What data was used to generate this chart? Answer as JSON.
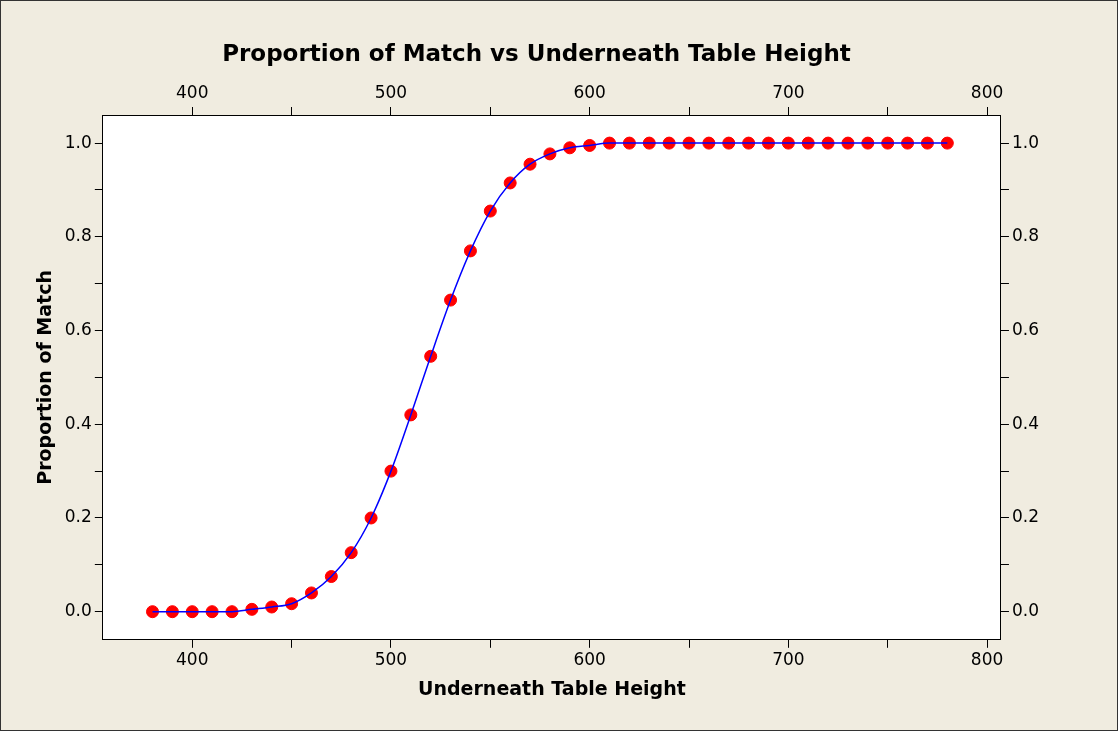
{
  "chart_data": {
    "type": "line",
    "title": "Proportion of Match vs Underneath Table Height",
    "xlabel": "Underneath Table Height",
    "ylabel": "Proportion of Match",
    "x": [
      380,
      390,
      400,
      410,
      420,
      430,
      440,
      450,
      460,
      470,
      480,
      490,
      500,
      510,
      520,
      530,
      540,
      550,
      560,
      570,
      580,
      590,
      600,
      610,
      620,
      630,
      640,
      650,
      660,
      670,
      680,
      690,
      700,
      710,
      720,
      730,
      740,
      750,
      760,
      770,
      780
    ],
    "series": [
      {
        "type": "line",
        "color": "#0000ff",
        "marker": "none",
        "values": [
          0.0,
          0.0,
          0.0,
          0.0,
          0.0,
          0.005,
          0.01,
          0.017,
          0.04,
          0.075,
          0.126,
          0.2,
          0.3,
          0.42,
          0.545,
          0.665,
          0.77,
          0.855,
          0.915,
          0.955,
          0.977,
          0.99,
          0.995,
          1.0,
          1.0,
          1.0,
          1.0,
          1.0,
          1.0,
          1.0,
          1.0,
          1.0,
          1.0,
          1.0,
          1.0,
          1.0,
          1.0,
          1.0,
          1.0,
          1.0,
          1.0
        ]
      },
      {
        "type": "scatter",
        "color": "#ff0000",
        "marker": "circle",
        "values": [
          0.0,
          0.0,
          0.0,
          0.0,
          0.0,
          0.005,
          0.01,
          0.017,
          0.04,
          0.075,
          0.126,
          0.2,
          0.3,
          0.42,
          0.545,
          0.665,
          0.77,
          0.855,
          0.915,
          0.955,
          0.977,
          0.99,
          0.995,
          1.0,
          1.0,
          1.0,
          1.0,
          1.0,
          1.0,
          1.0,
          1.0,
          1.0,
          1.0,
          1.0,
          1.0,
          1.0,
          1.0,
          1.0,
          1.0,
          1.0,
          1.0
        ]
      }
    ],
    "xlim": [
      355,
      807
    ],
    "xticks": [
      400,
      {
        "value": 450,
        "label": null
      },
      500,
      {
        "value": 550,
        "label": null
      },
      600,
      {
        "value": 650,
        "label": null
      },
      700,
      {
        "value": 750,
        "label": null
      },
      800
    ],
    "x2lim": [
      355,
      807
    ],
    "x2ticks": [
      400,
      {
        "value": 450,
        "label": null
      },
      500,
      {
        "value": 550,
        "label": null
      },
      600,
      {
        "value": 650,
        "label": null
      },
      700,
      {
        "value": 750,
        "label": null
      },
      800
    ],
    "ylim": [
      -0.06,
      1.06
    ],
    "yticks": [
      {
        "value": 0,
        "label": "0.0"
      },
      {
        "value": 0.1,
        "label": null
      },
      {
        "value": 0.2,
        "label": "0.2"
      },
      {
        "value": 0.3,
        "label": null
      },
      {
        "value": 0.4,
        "label": "0.4"
      },
      {
        "value": 0.5,
        "label": null
      },
      {
        "value": 0.6,
        "label": "0.6"
      },
      {
        "value": 0.7,
        "label": null
      },
      {
        "value": 0.8,
        "label": "0.8"
      },
      {
        "value": 0.9,
        "label": null
      },
      {
        "value": 1,
        "label": "1.0"
      }
    ],
    "y2lim": [
      -0.06,
      1.06
    ],
    "y2ticks": [
      {
        "value": 0,
        "label": "0.0"
      },
      {
        "value": 0.1,
        "label": null
      },
      {
        "value": 0.2,
        "label": "0.2"
      },
      {
        "value": 0.3,
        "label": null
      },
      {
        "value": 0.4,
        "label": "0.4"
      },
      {
        "value": 0.5,
        "label": null
      },
      {
        "value": 0.6,
        "label": "0.6"
      },
      {
        "value": 0.7,
        "label": null
      },
      {
        "value": 0.8,
        "label": "0.8"
      },
      {
        "value": 0.9,
        "label": null
      },
      {
        "value": 1,
        "label": "1.0"
      }
    ],
    "grid": false,
    "legend": false
  }
}
